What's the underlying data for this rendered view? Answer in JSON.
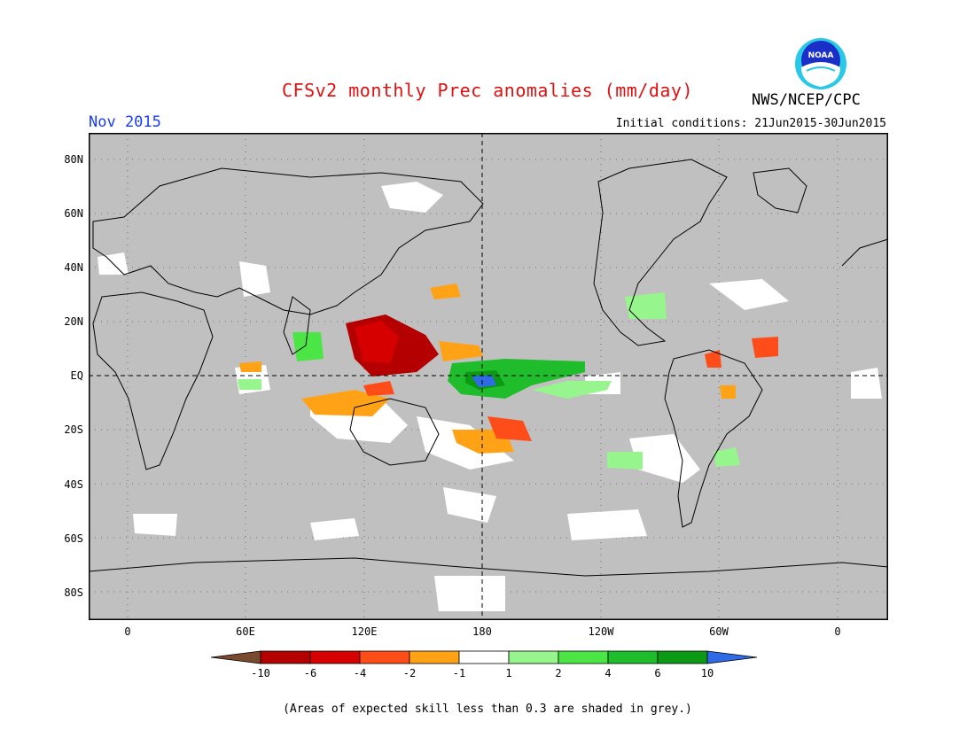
{
  "header": {
    "title": "CFSv2 monthly Prec anomalies (mm/day)",
    "month": "Nov 2015",
    "initial_conditions": "Initial conditions: 21Jun2015-30Jun2015",
    "agency": "NWS/NCEP/CPC",
    "logo_text": "NOAA"
  },
  "map": {
    "lat_labels": [
      "80N",
      "60N",
      "40N",
      "20N",
      "EQ",
      "20S",
      "40S",
      "60S",
      "80S"
    ],
    "lon_labels": [
      "0",
      "60E",
      "120E",
      "180",
      "120W",
      "60W",
      "0"
    ],
    "background_color": "#c0c0c0"
  },
  "colorbar": {
    "labels": [
      "-10",
      "-6",
      "-4",
      "-2",
      "-1",
      "1",
      "2",
      "4",
      "6",
      "10"
    ],
    "colors": [
      "#7a4a30",
      "#b40000",
      "#d60000",
      "#ff4d1a",
      "#ffa216",
      "#ffffff",
      "#96f58c",
      "#4be645",
      "#1fbd2b",
      "#0c9a14",
      "#2f6be6"
    ]
  },
  "footer": {
    "note": "(Areas of expected skill less than 0.3 are shaded in grey.)"
  }
}
